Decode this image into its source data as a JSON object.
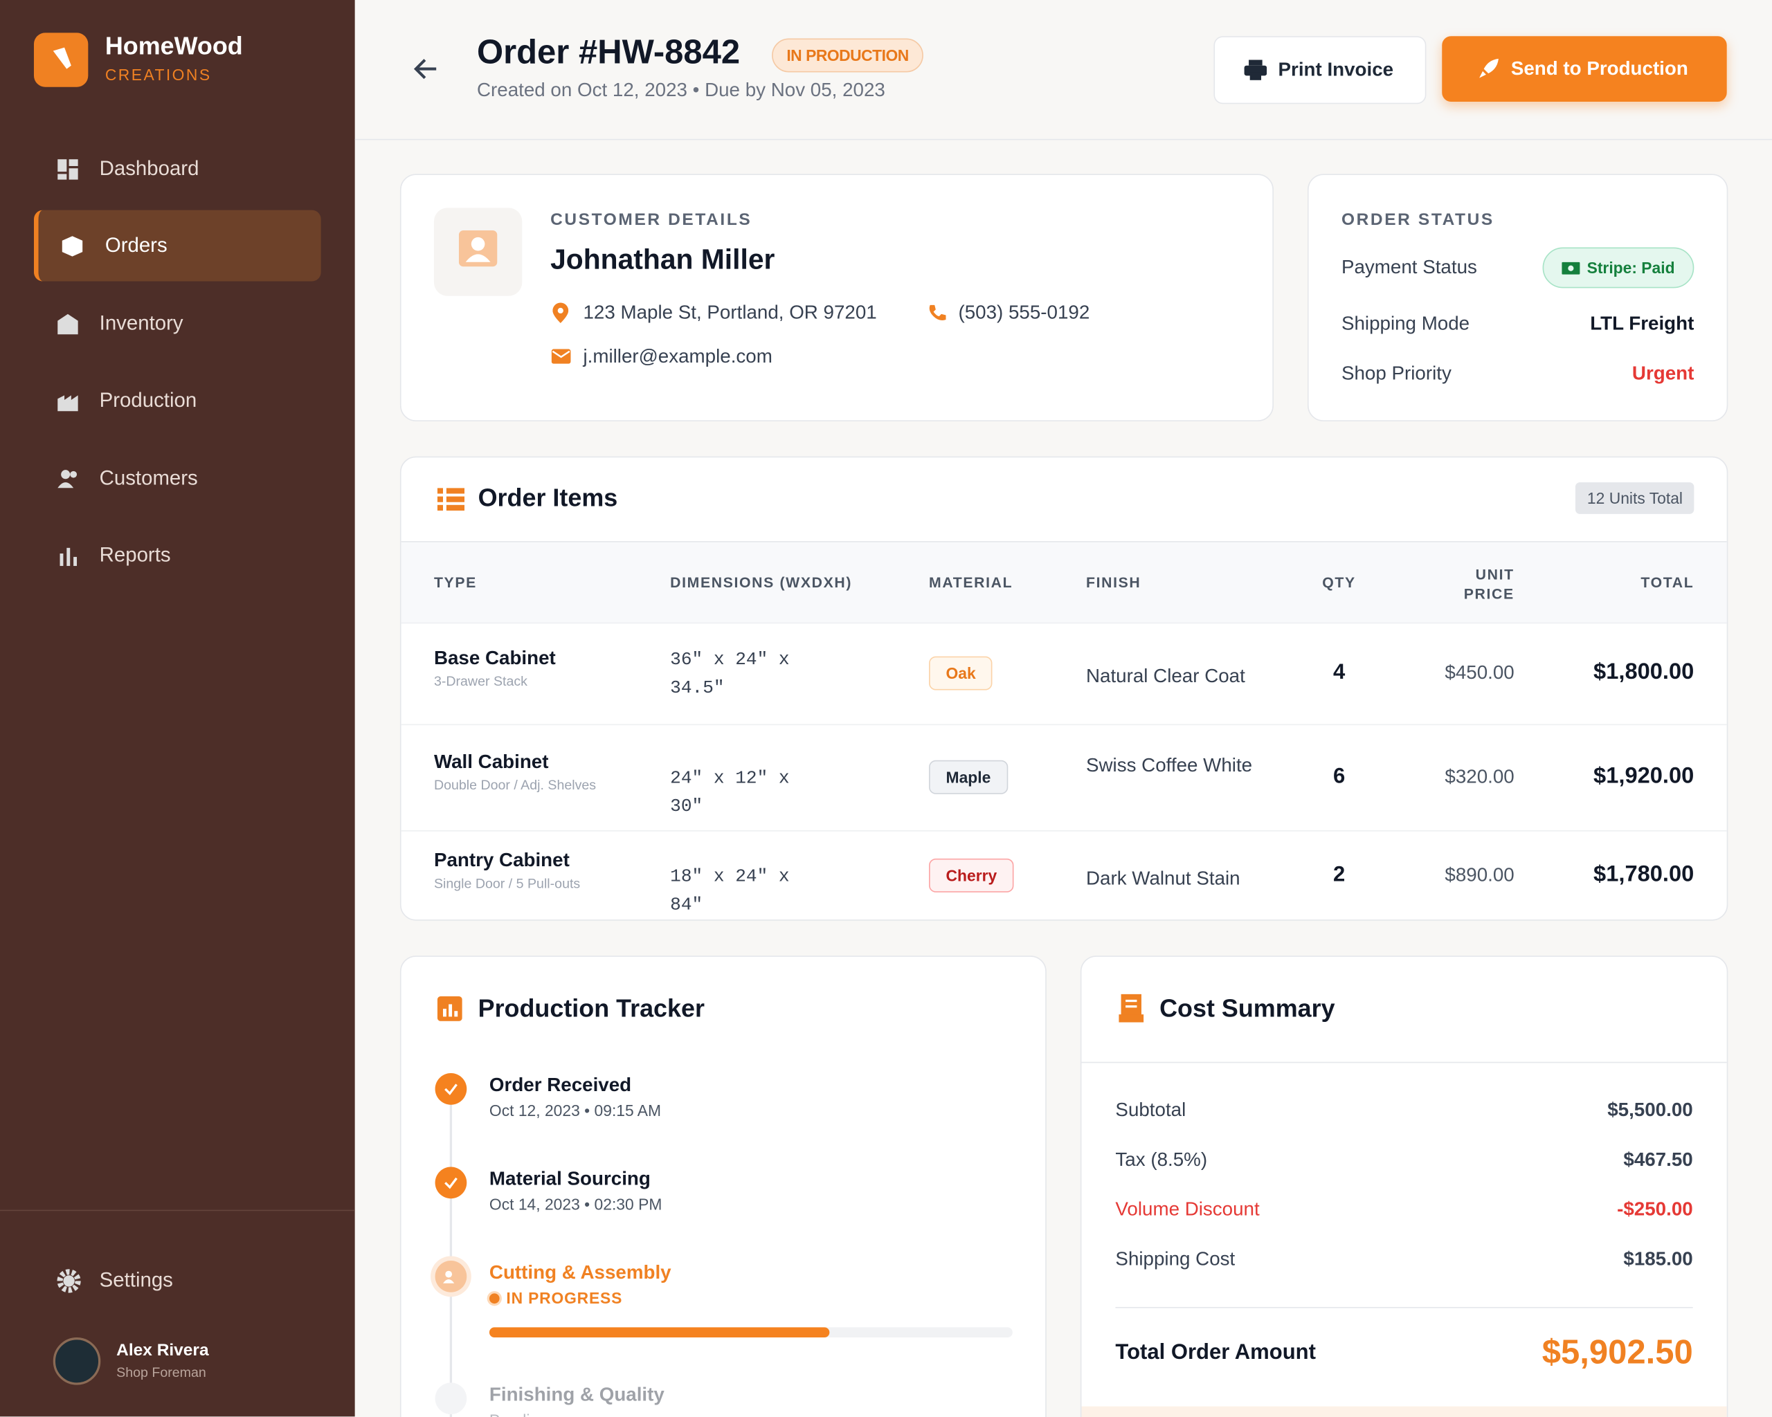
{
  "sidebar": {
    "brand": "HomeWood",
    "tagline": "CREATIONS",
    "nav": [
      "Dashboard",
      "Orders",
      "Inventory",
      "Production",
      "Customers",
      "Reports"
    ],
    "settings": "Settings",
    "user": {
      "name": "Alex Rivera",
      "role": "Shop Foreman"
    }
  },
  "header": {
    "title": "Order #HW-8842",
    "status": "IN PRODUCTION",
    "subtitle": "Created on Oct 12, 2023 • Due by Nov 05, 2023",
    "print": "Print Invoice",
    "send": "Send to Production"
  },
  "customer": {
    "heading": "CUSTOMER DETAILS",
    "name": "Johnathan Miller",
    "address": "123 Maple St, Portland, OR 97201",
    "phone": "(503) 555-0192",
    "email": "j.miller@example.com"
  },
  "order_status": {
    "heading": "ORDER STATUS",
    "rows": [
      {
        "label": "Payment Status",
        "value": "Stripe: Paid"
      },
      {
        "label": "Shipping Mode",
        "value": "LTL Freight"
      },
      {
        "label": "Shop Priority",
        "value": "Urgent"
      }
    ]
  },
  "items": {
    "title": "Order Items",
    "units": "12 Units Total",
    "columns": [
      "TYPE",
      "DIMENSIONS (WXDXH)",
      "MATERIAL",
      "FINISH",
      "QTY",
      "UNIT PRICE",
      "TOTAL"
    ],
    "rows": [
      {
        "type": "Base Cabinet",
        "desc": "3-Drawer Stack",
        "dims": "36\" x 24\" x 34.5\"",
        "material": "Oak",
        "finish": "Natural Clear Coat",
        "qty": "4",
        "unit": "$450.00",
        "total": "$1,800.00"
      },
      {
        "type": "Wall Cabinet",
        "desc": "Double Door / Adj. Shelves",
        "dims": "24\" x 12\" x 30\"",
        "material": "Maple",
        "finish": "Swiss Coffee White",
        "qty": "6",
        "unit": "$320.00",
        "total": "$1,920.00"
      },
      {
        "type": "Pantry Cabinet",
        "desc": "Single Door / 5 Pull-outs",
        "dims": "18\" x 24\" x 84\"",
        "material": "Cherry",
        "finish": "Dark Walnut Stain",
        "qty": "2",
        "unit": "$890.00",
        "total": "$1,780.00"
      }
    ]
  },
  "tracker": {
    "title": "Production Tracker",
    "steps": [
      {
        "name": "Order Received",
        "time": "Oct 12, 2023 • 09:15 AM"
      },
      {
        "name": "Material Sourcing",
        "time": "Oct 14, 2023 • 02:30 PM"
      },
      {
        "name": "Cutting & Assembly",
        "time": "IN PROGRESS"
      },
      {
        "name": "Finishing & Quality",
        "time": "Pending"
      }
    ],
    "progress": 65
  },
  "cost": {
    "title": "Cost Summary",
    "rows": [
      {
        "label": "Subtotal",
        "value": "$5,500.00"
      },
      {
        "label": "Tax (8.5%)",
        "value": "$467.50"
      },
      {
        "label": "Volume Discount",
        "value": "-$250.00"
      },
      {
        "label": "Shipping Cost",
        "value": "$185.00"
      }
    ],
    "total_label": "Total Order Amount",
    "total": "$5,902.50"
  }
}
